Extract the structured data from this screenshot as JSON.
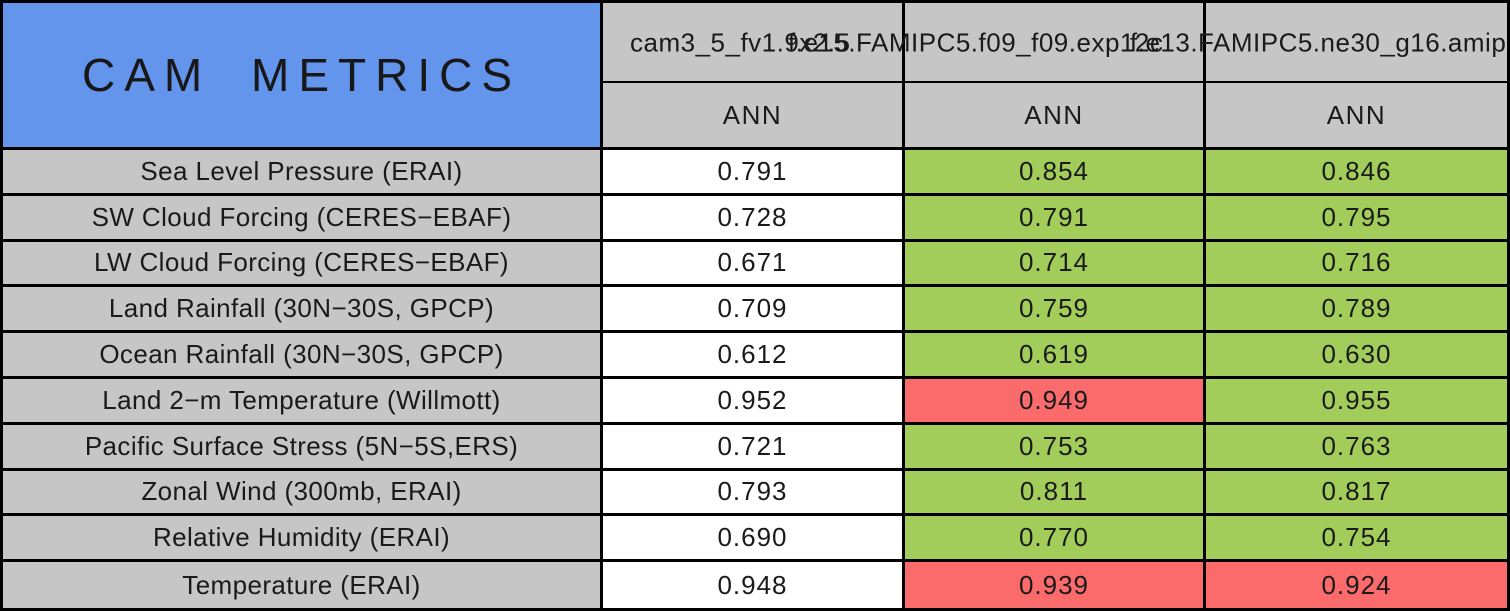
{
  "title": "CAM METRICS",
  "columns": [
    {
      "model": "cam3_5_fv1.9x2.5",
      "season": "ANN"
    },
    {
      "model": "f.e15.FAMIPC5.f09_f09.exp12c",
      "season": "ANN"
    },
    {
      "model": "f.e13.FAMIPC5.ne30_g16.amip",
      "season": "ANN"
    }
  ],
  "rows": [
    {
      "metric": "Sea Level Pressure (ERAI)",
      "values": [
        "0.791",
        "0.854",
        "0.846"
      ],
      "status": [
        "neutral",
        "better",
        "better"
      ]
    },
    {
      "metric": "SW Cloud Forcing (CERES−EBAF)",
      "values": [
        "0.728",
        "0.791",
        "0.795"
      ],
      "status": [
        "neutral",
        "better",
        "better"
      ]
    },
    {
      "metric": "LW Cloud Forcing (CERES−EBAF)",
      "values": [
        "0.671",
        "0.714",
        "0.716"
      ],
      "status": [
        "neutral",
        "better",
        "better"
      ]
    },
    {
      "metric": "Land Rainfall (30N−30S, GPCP)",
      "values": [
        "0.709",
        "0.759",
        "0.789"
      ],
      "status": [
        "neutral",
        "better",
        "better"
      ]
    },
    {
      "metric": "Ocean Rainfall (30N−30S, GPCP)",
      "values": [
        "0.612",
        "0.619",
        "0.630"
      ],
      "status": [
        "neutral",
        "better",
        "better"
      ]
    },
    {
      "metric": "Land 2−m Temperature (Willmott)",
      "values": [
        "0.952",
        "0.949",
        "0.955"
      ],
      "status": [
        "neutral",
        "worse",
        "better"
      ]
    },
    {
      "metric": "Pacific Surface Stress (5N−5S,ERS)",
      "values": [
        "0.721",
        "0.753",
        "0.763"
      ],
      "status": [
        "neutral",
        "better",
        "better"
      ]
    },
    {
      "metric": "Zonal Wind (300mb, ERAI)",
      "values": [
        "0.793",
        "0.811",
        "0.817"
      ],
      "status": [
        "neutral",
        "better",
        "better"
      ]
    },
    {
      "metric": "Relative Humidity (ERAI)",
      "values": [
        "0.690",
        "0.770",
        "0.754"
      ],
      "status": [
        "neutral",
        "better",
        "better"
      ]
    },
    {
      "metric": "Temperature (ERAI)",
      "values": [
        "0.948",
        "0.939",
        "0.924"
      ],
      "status": [
        "neutral",
        "worse",
        "worse"
      ]
    }
  ],
  "colors": {
    "title_blue": "#6495ED",
    "header_grey": "#C6C6C6",
    "better_green": "#A2CD5A",
    "worse_red": "#FB6B6B",
    "neutral_white": "#FFFFFF",
    "border_black": "#000000"
  },
  "chart_data": {
    "type": "table",
    "title": "CAM METRICS",
    "columns": [
      "cam3_5_fv1.9x2.5 (ANN)",
      "f.e15.FAMIPC5.f09_f09.exp12c (ANN)",
      "f.e13.FAMIPC5.ne30_g16.amip (ANN)"
    ],
    "metrics": [
      "Sea Level Pressure (ERAI)",
      "SW Cloud Forcing (CERES-EBAF)",
      "LW Cloud Forcing (CERES-EBAF)",
      "Land Rainfall (30N-30S, GPCP)",
      "Ocean Rainfall (30N-30S, GPCP)",
      "Land 2-m Temperature (Willmott)",
      "Pacific Surface Stress (5N-5S,ERS)",
      "Zonal Wind (300mb, ERAI)",
      "Relative Humidity (ERAI)",
      "Temperature (ERAI)"
    ],
    "values": [
      [
        0.791,
        0.854,
        0.846
      ],
      [
        0.728,
        0.791,
        0.795
      ],
      [
        0.671,
        0.714,
        0.716
      ],
      [
        0.709,
        0.759,
        0.789
      ],
      [
        0.612,
        0.619,
        0.63
      ],
      [
        0.952,
        0.949,
        0.955
      ],
      [
        0.721,
        0.753,
        0.763
      ],
      [
        0.793,
        0.811,
        0.817
      ],
      [
        0.69,
        0.77,
        0.754
      ],
      [
        0.948,
        0.939,
        0.924
      ]
    ],
    "cell_colors": [
      [
        "white",
        "green",
        "green"
      ],
      [
        "white",
        "green",
        "green"
      ],
      [
        "white",
        "green",
        "green"
      ],
      [
        "white",
        "green",
        "green"
      ],
      [
        "white",
        "green",
        "green"
      ],
      [
        "white",
        "red",
        "green"
      ],
      [
        "white",
        "green",
        "green"
      ],
      [
        "white",
        "green",
        "green"
      ],
      [
        "white",
        "green",
        "green"
      ],
      [
        "white",
        "red",
        "red"
      ]
    ]
  }
}
